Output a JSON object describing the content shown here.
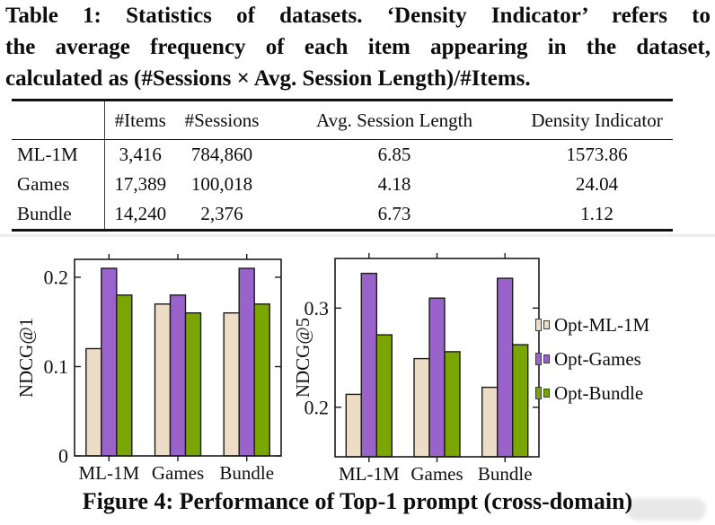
{
  "table_caption": {
    "lines": [
      "Table 1: Statistics of datasets. ‘Density Indicator’ refers to",
      "the average frequency of each item appearing in the dataset,",
      "calculated as (#Sessions × Avg. Session Length)/#Items."
    ]
  },
  "table": {
    "columns": [
      "",
      "#Items",
      "#Sessions",
      "Avg. Session Length",
      "Density Indicator"
    ],
    "rows": [
      [
        "ML-1M",
        "3,416",
        "784,860",
        "6.85",
        "1573.86"
      ],
      [
        "Games",
        "17,389",
        "100,018",
        "4.18",
        "24.04"
      ],
      [
        "Bundle",
        "14,240",
        "2,376",
        "6.73",
        "1.12"
      ]
    ]
  },
  "chart_data": [
    {
      "type": "bar",
      "title": "",
      "xlabel": "",
      "ylabel": "NDCG@1",
      "categories": [
        "ML-1M",
        "Games",
        "Bundle"
      ],
      "series": [
        {
          "name": "Opt-ML-1M",
          "color": "#eddcc6",
          "values": [
            0.12,
            0.17,
            0.16
          ]
        },
        {
          "name": "Opt-Games",
          "color": "#9a63cc",
          "values": [
            0.21,
            0.18,
            0.21
          ]
        },
        {
          "name": "Opt-Bundle",
          "color": "#7ba502",
          "values": [
            0.18,
            0.16,
            0.17
          ]
        }
      ],
      "ylim": [
        0,
        0.22
      ],
      "yticks": [
        0,
        0.1,
        0.2
      ],
      "grid": false,
      "legend_position": "none"
    },
    {
      "type": "bar",
      "title": "",
      "xlabel": "",
      "ylabel": "NDCG@5",
      "categories": [
        "ML-1M",
        "Games",
        "Bundle"
      ],
      "series": [
        {
          "name": "Opt-ML-1M",
          "color": "#eddcc6",
          "values": [
            0.213,
            0.249,
            0.22
          ]
        },
        {
          "name": "Opt-Games",
          "color": "#9a63cc",
          "values": [
            0.335,
            0.31,
            0.33
          ]
        },
        {
          "name": "Opt-Bundle",
          "color": "#7ba502",
          "values": [
            0.273,
            0.256,
            0.263
          ]
        }
      ],
      "ylim": [
        0.15,
        0.35
      ],
      "yticks": [
        0.2,
        0.3
      ],
      "grid": false,
      "legend_position": "right"
    }
  ],
  "legend": {
    "entries": [
      {
        "label": "Opt-ML-1M",
        "color": "#eddcc6"
      },
      {
        "label": "Opt-Games",
        "color": "#9a63cc"
      },
      {
        "label": "Opt-Bundle",
        "color": "#7ba502"
      }
    ]
  },
  "figure_caption": "Figure 4: Performance of Top-1 prompt (cross-domain)",
  "colors": {
    "axis": "#1a1a1a",
    "bar_border": "#1b1b1b",
    "separator": "#ececec"
  }
}
